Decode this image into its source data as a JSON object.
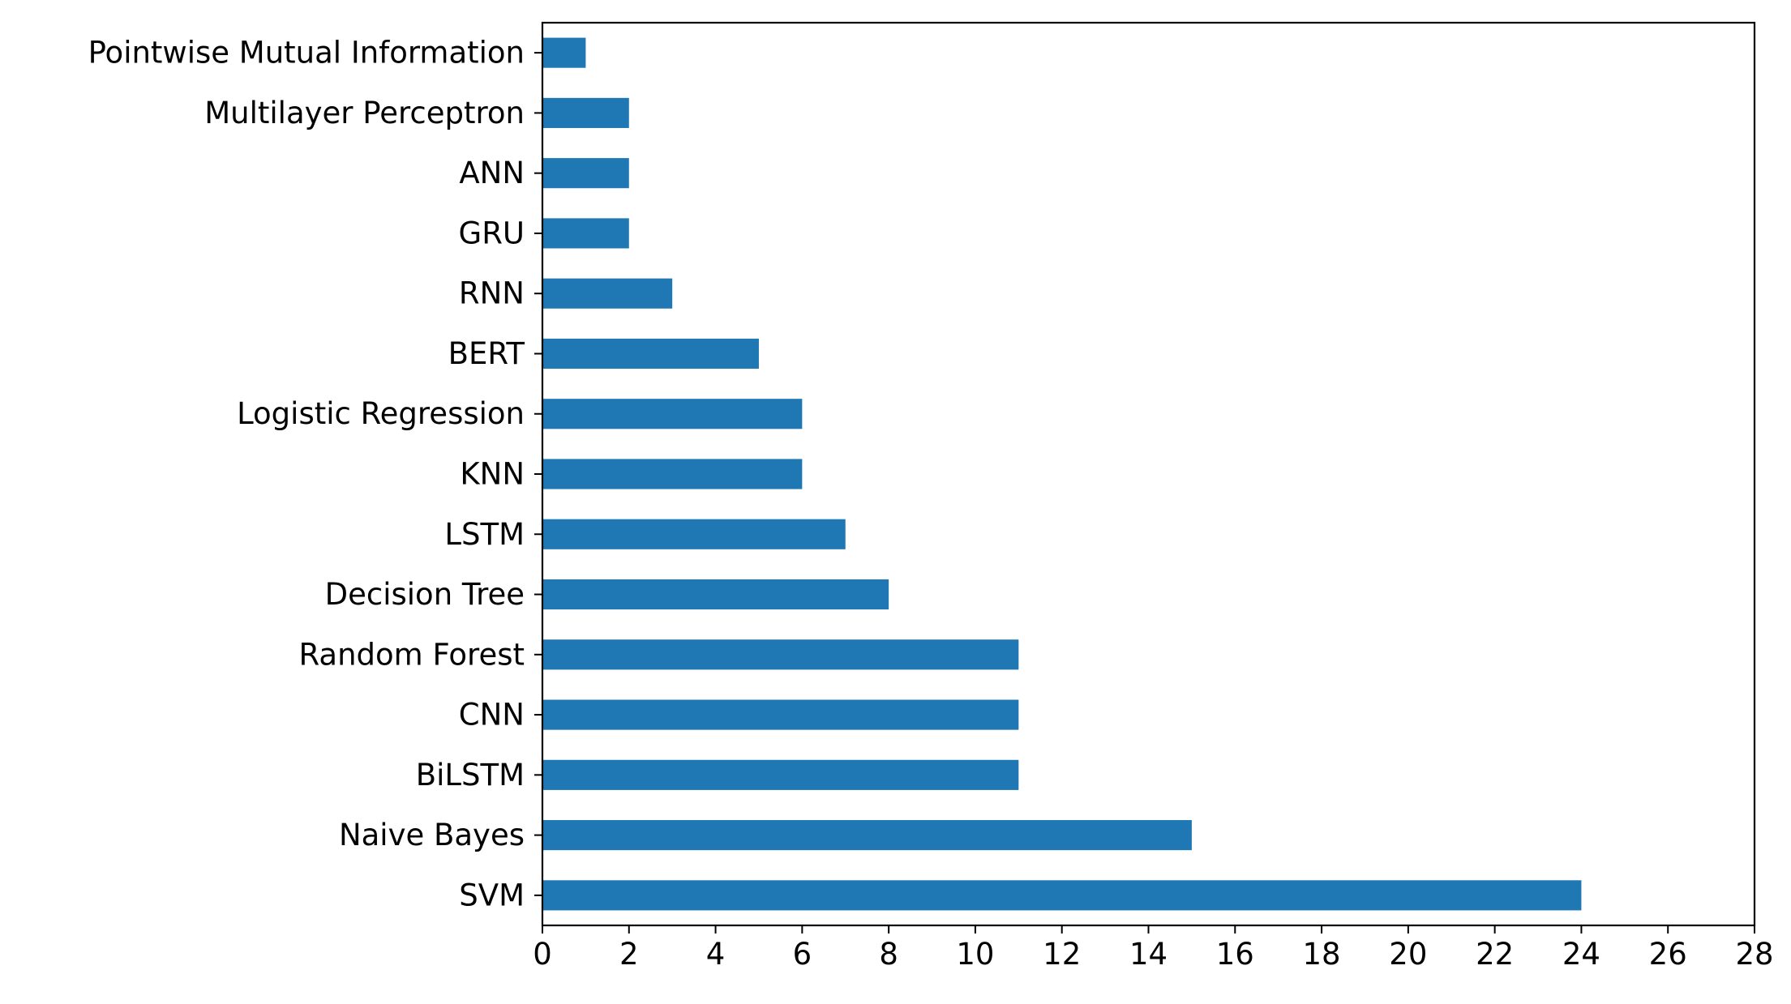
{
  "chart_data": {
    "type": "bar",
    "orientation": "horizontal",
    "title": "",
    "xlabel": "",
    "ylabel": "",
    "categories": [
      "SVM",
      "Naive Bayes",
      "BiLSTM",
      "CNN",
      "Random Forest",
      "Decision Tree",
      "LSTM",
      "KNN",
      "Logistic Regression",
      "BERT",
      "RNN",
      "GRU",
      "ANN",
      "Multilayer Perceptron",
      "Pointwise Mutual Information"
    ],
    "values": [
      24,
      15,
      11,
      11,
      11,
      8,
      7,
      6,
      6,
      5,
      3,
      2,
      2,
      2,
      1
    ],
    "xlim": [
      0,
      28
    ],
    "xticks": [
      0,
      2,
      4,
      6,
      8,
      10,
      12,
      14,
      16,
      18,
      20,
      22,
      24,
      26,
      28
    ],
    "bar_color": "#1f77b4",
    "grid": false,
    "legend": false
  }
}
